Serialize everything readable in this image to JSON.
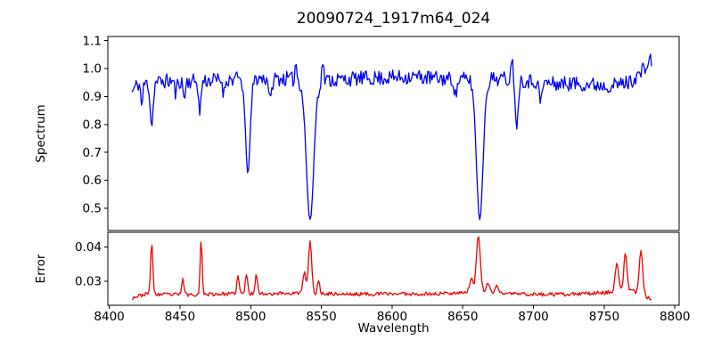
{
  "chart_data": [
    {
      "type": "line",
      "series_name": "spectrum",
      "title": "20090724_1917m64_024",
      "ylabel": "Spectrum",
      "xlabel": "",
      "line_color": "#0000ee",
      "axis_color": "#000000",
      "xlim": [
        8399,
        8803
      ],
      "ylim": [
        0.42,
        1.115
      ],
      "x_data_range": [
        8416,
        8784
      ],
      "y_ticks": [
        {
          "v": 0.5,
          "label": "0.5"
        },
        {
          "v": 0.6,
          "label": "0.6"
        },
        {
          "v": 0.7,
          "label": "0.7"
        },
        {
          "v": 0.8,
          "label": "0.8"
        },
        {
          "v": 0.9,
          "label": "0.9"
        },
        {
          "v": 1.0,
          "label": "1.0"
        },
        {
          "v": 1.1,
          "label": "1.1"
        }
      ],
      "x_ticks": [],
      "noise_amplitude": 0.027,
      "baseline_anchors": [
        [
          8416,
          0.915
        ],
        [
          8420,
          0.945
        ],
        [
          8440,
          0.955
        ],
        [
          8460,
          0.955
        ],
        [
          8480,
          0.96
        ],
        [
          8500,
          0.965
        ],
        [
          8520,
          0.965
        ],
        [
          8545,
          0.955
        ],
        [
          8560,
          0.96
        ],
        [
          8580,
          0.965
        ],
        [
          8600,
          0.968
        ],
        [
          8615,
          0.972
        ],
        [
          8630,
          0.965
        ],
        [
          8645,
          0.962
        ],
        [
          8660,
          0.96
        ],
        [
          8675,
          0.965
        ],
        [
          8690,
          0.96
        ],
        [
          8705,
          0.952
        ],
        [
          8715,
          0.945
        ],
        [
          8730,
          0.947
        ],
        [
          8745,
          0.942
        ],
        [
          8757,
          0.94
        ],
        [
          8768,
          0.952
        ],
        [
          8776,
          0.985
        ],
        [
          8784,
          1.035
        ]
      ],
      "absorption_lines": [
        [
          8423,
          0.08,
          0.7
        ],
        [
          8430,
          0.155,
          1.0
        ],
        [
          8447,
          0.05,
          0.7
        ],
        [
          8453,
          0.06,
          0.8
        ],
        [
          8464,
          0.12,
          0.8
        ],
        [
          8481,
          0.05,
          0.7
        ],
        [
          8498,
          0.335,
          1.7
        ],
        [
          8514,
          0.085,
          0.9
        ],
        [
          8542,
          0.5,
          2.6
        ],
        [
          8645,
          0.06,
          0.9
        ],
        [
          8662,
          0.5,
          2.3
        ],
        [
          8688,
          0.165,
          1.1
        ],
        [
          8705,
          0.075,
          0.9
        ]
      ],
      "emission_spikes": [
        [
          8532,
          0.065,
          0.6
        ],
        [
          8551,
          0.075,
          0.6
        ],
        [
          8685,
          0.1,
          0.7
        ]
      ]
    },
    {
      "type": "line",
      "series_name": "error",
      "ylabel": "Error",
      "xlabel": "Wavelength",
      "line_color": "#ee0000",
      "axis_color": "#000000",
      "xlim": [
        8399,
        8803
      ],
      "ylim": [
        0.023,
        0.0443
      ],
      "x_data_range": [
        8416,
        8784
      ],
      "y_ticks": [
        {
          "v": 0.03,
          "label": "0.03"
        },
        {
          "v": 0.04,
          "label": "0.04"
        }
      ],
      "x_ticks": [
        {
          "v": 8400,
          "label": "8400"
        },
        {
          "v": 8450,
          "label": "8450"
        },
        {
          "v": 8500,
          "label": "8500"
        },
        {
          "v": 8550,
          "label": "8550"
        },
        {
          "v": 8600,
          "label": "8600"
        },
        {
          "v": 8650,
          "label": "8650"
        },
        {
          "v": 8700,
          "label": "8700"
        },
        {
          "v": 8750,
          "label": "8750"
        },
        {
          "v": 8800,
          "label": "8800"
        }
      ],
      "noise_amplitude": 0.00055,
      "baseline_anchors": [
        [
          8416,
          0.0252
        ],
        [
          8425,
          0.0262
        ],
        [
          8450,
          0.0261
        ],
        [
          8480,
          0.0263
        ],
        [
          8510,
          0.0264
        ],
        [
          8540,
          0.0266
        ],
        [
          8570,
          0.0262
        ],
        [
          8600,
          0.0264
        ],
        [
          8630,
          0.0263
        ],
        [
          8650,
          0.0268
        ],
        [
          8680,
          0.0265
        ],
        [
          8700,
          0.0262
        ],
        [
          8725,
          0.0261
        ],
        [
          8745,
          0.0266
        ],
        [
          8757,
          0.0268
        ],
        [
          8770,
          0.0272
        ],
        [
          8779,
          0.0258
        ],
        [
          8784,
          0.0242
        ]
      ],
      "absorption_lines": [],
      "emission_spikes": [
        [
          8430,
          0.015,
          0.8
        ],
        [
          8452,
          0.0045,
          0.8
        ],
        [
          8465,
          0.016,
          0.7
        ],
        [
          8491,
          0.0052,
          0.8
        ],
        [
          8497,
          0.0058,
          0.8
        ],
        [
          8504,
          0.006,
          0.8
        ],
        [
          8538,
          0.0062,
          1.0
        ],
        [
          8542,
          0.0152,
          1.1
        ],
        [
          8548,
          0.0035,
          0.8
        ],
        [
          8656,
          0.004,
          1.2
        ],
        [
          8661,
          0.0166,
          1.4
        ],
        [
          8668,
          0.003,
          1.0
        ],
        [
          8674,
          0.0026,
          0.9
        ],
        [
          8759,
          0.0088,
          1.2
        ],
        [
          8765,
          0.0112,
          1.1
        ],
        [
          8776,
          0.0128,
          1.2
        ]
      ]
    }
  ]
}
